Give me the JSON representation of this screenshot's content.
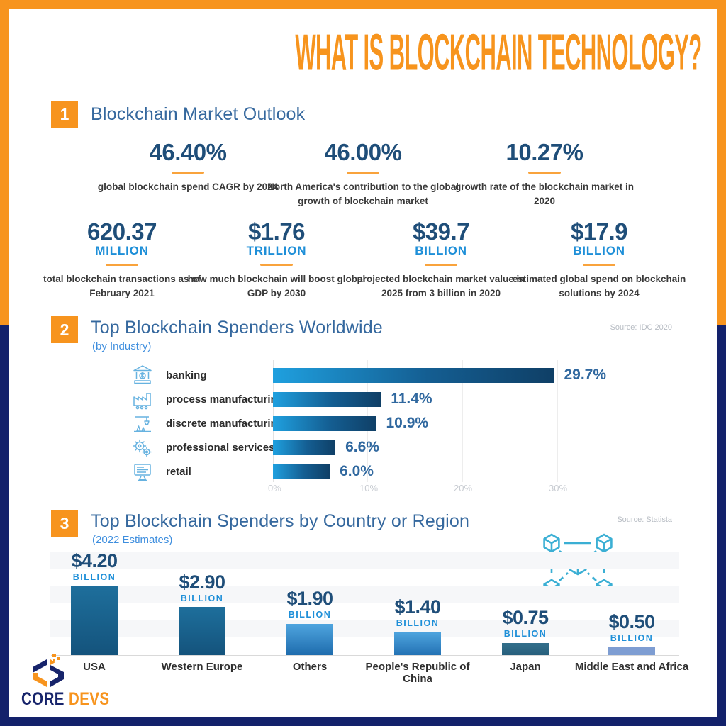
{
  "page": {
    "title": "WHAT IS BLOCKCHAIN TECHNOLOGY?"
  },
  "sections": [
    {
      "number": "1",
      "title": "Blockchain Market Outlook",
      "subtitle": "",
      "source": ""
    },
    {
      "number": "2",
      "title": "Top Blockchain Spenders Worldwide",
      "subtitle": "(by Industry)",
      "source": "Source: IDC 2020"
    },
    {
      "number": "3",
      "title": "Top Blockchain Spenders by Country or Region",
      "subtitle": "(2022 Estimates)",
      "source": "Source:  Statista"
    }
  ],
  "stats_row1": [
    {
      "value": "46.40%",
      "label": "global blockchain spend CAGR by 2024"
    },
    {
      "value": "46.00%",
      "label": "North America's contribution to the global growth of blockchain market"
    },
    {
      "value": "10.27%",
      "label": "growth rate of the blockchain market in 2020"
    }
  ],
  "stats_row2": [
    {
      "value": "620.37",
      "unit": "MILLION",
      "label": "total blockchain transactions as of February 2021"
    },
    {
      "value": "$1.76",
      "unit": "TRILLION",
      "label": "how much blockchain will boost global GDP by 2030"
    },
    {
      "value": "$39.7",
      "unit": "BILLION",
      "label": "projected blockchain market value in 2025 from 3 billion in 2020"
    },
    {
      "value": "$17.9",
      "unit": "BILLION",
      "label": "estimated global spend on blockchain solutions by 2024"
    }
  ],
  "chart_data": [
    {
      "type": "bar",
      "orientation": "horizontal",
      "title": "Top Blockchain Spenders Worldwide (by Industry)",
      "source": "Source: IDC 2020",
      "categories": [
        "banking",
        "process manufacturing",
        "discrete manufacturing",
        "professional services",
        "retail"
      ],
      "values": [
        29.7,
        11.4,
        10.9,
        6.6,
        6.0
      ],
      "value_labels": [
        "29.7%",
        "11.4%",
        "10.9%",
        "6.6%",
        "6.0%"
      ],
      "icons": [
        "bank-icon",
        "factory-icon",
        "robot-arm-icon",
        "gears-icon",
        "monitor-icon"
      ],
      "unit": "%",
      "xlim": [
        0,
        30
      ],
      "xticks": [
        "0%",
        "10%",
        "20%",
        "30%"
      ],
      "grid": "vertical-light"
    },
    {
      "type": "bar",
      "orientation": "vertical",
      "title": "Top Blockchain Spenders by Country or Region (2022 Estimates)",
      "source": "Source: Statista",
      "categories": [
        "USA",
        "Western Europe",
        "Others",
        "People's Republic of China",
        "Japan",
        "Middle East and Africa"
      ],
      "values": [
        4.2,
        2.9,
        1.9,
        1.4,
        0.75,
        0.5
      ],
      "value_labels": [
        "$4.20",
        "$2.90",
        "$1.90",
        "$1.40",
        "$0.75",
        "$0.50"
      ],
      "unit_label": "BILLION",
      "ylim": [
        0,
        4.5
      ],
      "grid": "horizontal-bands"
    }
  ],
  "logo": {
    "text_primary": "CORE",
    "text_secondary": "DEVS"
  },
  "colors": {
    "accent_orange": "#F7941E",
    "frame_navy": "#13216B",
    "heading_blue": "#35689E",
    "stat_navy": "#1F4E79",
    "stat_bright_blue": "#1E8FD8",
    "bar_gradient_start": "#1FA0DF",
    "bar_gradient_end": "#0F3F66",
    "decoration_cyan": "#3BAFD4"
  }
}
